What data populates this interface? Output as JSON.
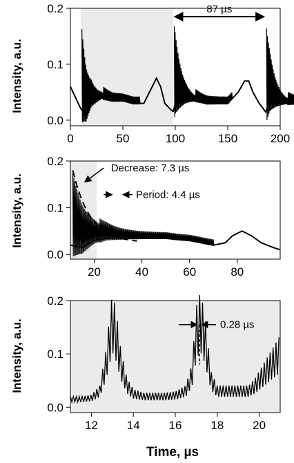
{
  "figure": {
    "xlabel": "Time, µs"
  },
  "chart_data": [
    {
      "type": "line",
      "panel": "top",
      "ylabel": "Intensity, a.u.",
      "xlim": [
        0,
        200
      ],
      "ylim": [
        -0.01,
        0.2
      ],
      "xticks": [
        "0",
        "50",
        "100",
        "150",
        "200"
      ],
      "yticks": [
        "0.0",
        "0.1",
        "0.2"
      ],
      "shaded_x": [
        10,
        98
      ],
      "annotations": [
        {
          "text": "87 µs",
          "x1": 98,
          "x2": 186,
          "y": 0.185
        }
      ],
      "series": [
        {
          "x": [
            0,
            5,
            10,
            15,
            20,
            30,
            40,
            50,
            60,
            70,
            78,
            82,
            86,
            90,
            95,
            98
          ],
          "y": [
            0.06,
            0.04,
            0.02,
            0.01,
            0.03,
            0.04,
            0.035,
            0.035,
            0.03,
            0.03,
            0.06,
            0.075,
            0.06,
            0.03,
            0.02,
            0.015
          ],
          "x2": [
            98,
            100,
            110,
            120,
            130,
            140,
            150,
            160,
            166,
            170,
            174,
            180,
            184,
            186,
            190,
            195,
            200
          ],
          "y2": [
            0.015,
            0.03,
            0.035,
            0.035,
            0.03,
            0.03,
            0.03,
            0.05,
            0.07,
            0.07,
            0.05,
            0.03,
            0.02,
            0.015,
            0.03,
            0.03,
            0.03
          ]
        }
      ]
    },
    {
      "type": "line",
      "panel": "middle",
      "ylabel": "Intensity, a.u.",
      "xlim": [
        10,
        98
      ],
      "ylim": [
        -0.01,
        0.2
      ],
      "xticks": [
        "20",
        "40",
        "60",
        "80"
      ],
      "yticks": [
        "0.0",
        "0.1",
        "0.2"
      ],
      "shaded_x": [
        10,
        21
      ],
      "annotations": [
        {
          "text": "Decrease: 7.3 µs"
        },
        {
          "text": "Period: 4.4 µs"
        }
      ],
      "series": [
        {
          "x": [
            10,
            15,
            20,
            25,
            30,
            35,
            40,
            45,
            50,
            55,
            60,
            65,
            70,
            75,
            78,
            82,
            86,
            90,
            95,
            98
          ],
          "y": [
            0.02,
            0.015,
            0.03,
            0.035,
            0.035,
            0.035,
            0.035,
            0.035,
            0.035,
            0.032,
            0.03,
            0.025,
            0.02,
            0.025,
            0.04,
            0.05,
            0.04,
            0.025,
            0.015,
            0.01
          ]
        }
      ]
    },
    {
      "type": "line",
      "panel": "bottom",
      "ylabel": "Intensity, a.u.",
      "xlim": [
        11,
        21
      ],
      "ylim": [
        -0.01,
        0.2
      ],
      "xticks": [
        "12",
        "14",
        "16",
        "18",
        "20"
      ],
      "yticks": [
        "0.0",
        "0.1",
        "0.2"
      ],
      "annotations": [
        {
          "text": "0.28 µs",
          "x": 17.15
        }
      ],
      "series": [
        {
          "x": [
            11,
            11.5,
            12,
            12.4,
            12.7,
            13.0,
            13.2,
            13.4,
            13.7,
            14.0,
            14.5,
            15.0,
            15.5,
            16.0,
            16.5,
            16.8,
            17.0,
            17.2,
            17.4,
            17.7,
            18.0,
            18.5,
            19.0,
            19.5,
            19.8,
            20.2,
            20.6,
            21.0
          ],
          "y": [
            0.015,
            0.015,
            0.017,
            0.03,
            0.08,
            0.16,
            0.13,
            0.08,
            0.04,
            0.025,
            0.02,
            0.02,
            0.02,
            0.022,
            0.03,
            0.06,
            0.14,
            0.16,
            0.13,
            0.05,
            0.03,
            0.03,
            0.03,
            0.03,
            0.04,
            0.06,
            0.08,
            0.1
          ]
        }
      ]
    }
  ]
}
